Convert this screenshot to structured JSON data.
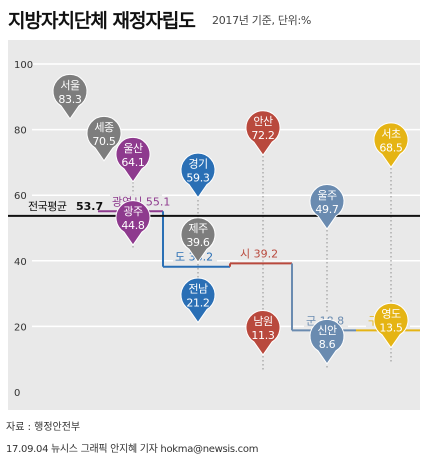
{
  "title": "지방자치단체 재정자립도",
  "subtitle": "2017년 기준, 단위:%",
  "source": "자료 : 행정안전부",
  "credit": "17.09.04 뉴시스 그래픽 안지혜 기자 hokma@newsis.com",
  "colors": {
    "background": "#e9e9e9",
    "seoul_pin": "#7d7d7d",
    "metro_pin": "#8e3a8e",
    "province_pin": "#2a6fb5",
    "city_pin": "#b9493d",
    "county_pin": "#6a8bb0",
    "district_pin": "#e5b414",
    "national_line": "#111111",
    "metro_line": "#8e3a8e",
    "province_line": "#2a6fb5",
    "city_line": "#b9493d",
    "county_line": "#6a8bb0",
    "district_line": "#e5b414"
  },
  "chart_data": {
    "type": "scatter",
    "title": "지방자치단체 재정자립도",
    "ylim": [
      0,
      100
    ],
    "y_ticks": [
      "0",
      "20",
      "40",
      "60",
      "80",
      "100"
    ],
    "grid": true,
    "national_average": {
      "label": "전국평균",
      "value": 53.7,
      "value_text": "53.7"
    },
    "average_steps": [
      {
        "label": "광역시",
        "value": 55.1,
        "value_text": "55.1",
        "color_key": "metro_line"
      },
      {
        "label": "도",
        "value": 38.2,
        "value_text": "38.2",
        "color_key": "province_line"
      },
      {
        "label": "시",
        "value": 39.2,
        "value_text": "39.2",
        "color_key": "city_line"
      },
      {
        "label": "군",
        "value": 18.8,
        "value_text": "18.8",
        "color_key": "county_line"
      },
      {
        "label": "구",
        "value": 18.8,
        "value_text": "18.8",
        "color_key": "district_line"
      }
    ],
    "points": [
      {
        "name": "서울",
        "value": 83.3,
        "value_text": "83.3",
        "color_key": "seoul_pin"
      },
      {
        "name": "세종",
        "value": 70.5,
        "value_text": "70.5",
        "color_key": "seoul_pin"
      },
      {
        "name": "울산",
        "value": 64.1,
        "value_text": "64.1",
        "color_key": "metro_pin"
      },
      {
        "name": "광주",
        "value": 44.8,
        "value_text": "44.8",
        "color_key": "metro_pin"
      },
      {
        "name": "경기",
        "value": 59.3,
        "value_text": "59.3",
        "color_key": "province_pin"
      },
      {
        "name": "제주",
        "value": 39.6,
        "value_text": "39.6",
        "color_key": "seoul_pin"
      },
      {
        "name": "전남",
        "value": 21.2,
        "value_text": "21.2",
        "color_key": "province_pin"
      },
      {
        "name": "안산",
        "value": 72.2,
        "value_text": "72.2",
        "color_key": "city_pin"
      },
      {
        "name": "남원",
        "value": 11.3,
        "value_text": "11.3",
        "color_key": "city_pin"
      },
      {
        "name": "울주",
        "value": 49.7,
        "value_text": "49.7",
        "color_key": "county_pin"
      },
      {
        "name": "신안",
        "value": 8.6,
        "value_text": "8.6",
        "color_key": "county_pin"
      },
      {
        "name": "서초",
        "value": 68.5,
        "value_text": "68.5",
        "color_key": "district_pin"
      },
      {
        "name": "영도",
        "value": 13.5,
        "value_text": "13.5",
        "color_key": "district_pin"
      }
    ]
  }
}
